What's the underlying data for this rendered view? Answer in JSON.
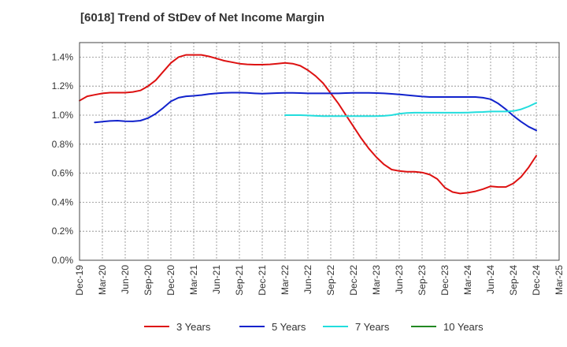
{
  "chart_data": {
    "type": "line",
    "title": "[6018]  Trend of StDev of Net Income Margin",
    "xlabel": "",
    "ylabel": "",
    "ylim": [
      0.0,
      1.5
    ],
    "y_ticks": [
      "0.0%",
      "0.2%",
      "0.4%",
      "0.6%",
      "0.8%",
      "1.0%",
      "1.2%",
      "1.4%"
    ],
    "y_tick_values": [
      0.0,
      0.2,
      0.4,
      0.6,
      0.8,
      1.0,
      1.2,
      1.4
    ],
    "x_ticks": [
      "Dec-19",
      "Mar-20",
      "Jun-20",
      "Sep-20",
      "Dec-20",
      "Mar-21",
      "Jun-21",
      "Sep-21",
      "Dec-21",
      "Mar-22",
      "Jun-22",
      "Sep-22",
      "Dec-22",
      "Mar-23",
      "Jun-23",
      "Sep-23",
      "Dec-23",
      "Mar-24",
      "Jun-24",
      "Sep-24",
      "Dec-24",
      "Mar-25"
    ],
    "grid": true,
    "legend_position": "bottom",
    "series": [
      {
        "name": "3 Years",
        "color": "#dd1111",
        "points": [
          [
            "Dec-19",
            1.1
          ],
          [
            "Jan-20",
            1.13
          ],
          [
            "Feb-20",
            1.14
          ],
          [
            "Mar-20",
            1.15
          ],
          [
            "Apr-20",
            1.155
          ],
          [
            "May-20",
            1.155
          ],
          [
            "Jun-20",
            1.155
          ],
          [
            "Jul-20",
            1.16
          ],
          [
            "Aug-20",
            1.17
          ],
          [
            "Sep-20",
            1.2
          ],
          [
            "Oct-20",
            1.24
          ],
          [
            "Nov-20",
            1.3
          ],
          [
            "Dec-20",
            1.36
          ],
          [
            "Jan-21",
            1.4
          ],
          [
            "Feb-21",
            1.415
          ],
          [
            "Mar-21",
            1.415
          ],
          [
            "Apr-21",
            1.415
          ],
          [
            "May-21",
            1.405
          ],
          [
            "Jun-21",
            1.39
          ],
          [
            "Jul-21",
            1.375
          ],
          [
            "Aug-21",
            1.365
          ],
          [
            "Sep-21",
            1.355
          ],
          [
            "Oct-21",
            1.35
          ],
          [
            "Nov-21",
            1.348
          ],
          [
            "Dec-21",
            1.348
          ],
          [
            "Jan-22",
            1.35
          ],
          [
            "Feb-22",
            1.355
          ],
          [
            "Mar-22",
            1.36
          ],
          [
            "Apr-22",
            1.355
          ],
          [
            "May-22",
            1.34
          ],
          [
            "Jun-22",
            1.31
          ],
          [
            "Jul-22",
            1.27
          ],
          [
            "Aug-22",
            1.22
          ],
          [
            "Sep-22",
            1.15
          ],
          [
            "Oct-22",
            1.08
          ],
          [
            "Nov-22",
            1.0
          ],
          [
            "Dec-22",
            0.92
          ],
          [
            "Jan-23",
            0.84
          ],
          [
            "Feb-23",
            0.77
          ],
          [
            "Mar-23",
            0.71
          ],
          [
            "Apr-23",
            0.66
          ],
          [
            "May-23",
            0.625
          ],
          [
            "Jun-23",
            0.615
          ],
          [
            "Jul-23",
            0.61
          ],
          [
            "Aug-23",
            0.61
          ],
          [
            "Sep-23",
            0.605
          ],
          [
            "Oct-23",
            0.59
          ],
          [
            "Nov-23",
            0.56
          ],
          [
            "Dec-23",
            0.5
          ],
          [
            "Jan-24",
            0.47
          ],
          [
            "Feb-24",
            0.46
          ],
          [
            "Mar-24",
            0.465
          ],
          [
            "Apr-24",
            0.475
          ],
          [
            "May-24",
            0.49
          ],
          [
            "Jun-24",
            0.51
          ],
          [
            "Jul-24",
            0.505
          ],
          [
            "Aug-24",
            0.505
          ],
          [
            "Sep-24",
            0.53
          ],
          [
            "Oct-24",
            0.575
          ],
          [
            "Nov-24",
            0.64
          ],
          [
            "Dec-24",
            0.72
          ]
        ]
      },
      {
        "name": "5 Years",
        "color": "#1122cc",
        "points": [
          [
            "Feb-20",
            0.95
          ],
          [
            "Mar-20",
            0.955
          ],
          [
            "Apr-20",
            0.96
          ],
          [
            "May-20",
            0.962
          ],
          [
            "Jun-20",
            0.958
          ],
          [
            "Jul-20",
            0.957
          ],
          [
            "Aug-20",
            0.962
          ],
          [
            "Sep-20",
            0.98
          ],
          [
            "Oct-20",
            1.01
          ],
          [
            "Nov-20",
            1.05
          ],
          [
            "Dec-20",
            1.095
          ],
          [
            "Jan-21",
            1.12
          ],
          [
            "Feb-21",
            1.13
          ],
          [
            "Mar-21",
            1.133
          ],
          [
            "Apr-21",
            1.138
          ],
          [
            "May-21",
            1.145
          ],
          [
            "Jun-21",
            1.15
          ],
          [
            "Jul-21",
            1.153
          ],
          [
            "Aug-21",
            1.155
          ],
          [
            "Sep-21",
            1.155
          ],
          [
            "Oct-21",
            1.153
          ],
          [
            "Nov-21",
            1.15
          ],
          [
            "Dec-21",
            1.148
          ],
          [
            "Jan-22",
            1.15
          ],
          [
            "Feb-22",
            1.152
          ],
          [
            "Mar-22",
            1.153
          ],
          [
            "Apr-22",
            1.153
          ],
          [
            "May-22",
            1.152
          ],
          [
            "Jun-22",
            1.15
          ],
          [
            "Jul-22",
            1.15
          ],
          [
            "Aug-22",
            1.15
          ],
          [
            "Sep-22",
            1.15
          ],
          [
            "Oct-22",
            1.15
          ],
          [
            "Nov-22",
            1.152
          ],
          [
            "Dec-22",
            1.153
          ],
          [
            "Jan-23",
            1.153
          ],
          [
            "Feb-23",
            1.153
          ],
          [
            "Mar-23",
            1.152
          ],
          [
            "Apr-23",
            1.15
          ],
          [
            "May-23",
            1.147
          ],
          [
            "Jun-23",
            1.143
          ],
          [
            "Jul-23",
            1.138
          ],
          [
            "Aug-23",
            1.133
          ],
          [
            "Sep-23",
            1.128
          ],
          [
            "Oct-23",
            1.125
          ],
          [
            "Nov-23",
            1.125
          ],
          [
            "Dec-23",
            1.125
          ],
          [
            "Jan-24",
            1.125
          ],
          [
            "Feb-24",
            1.125
          ],
          [
            "Mar-24",
            1.125
          ],
          [
            "Apr-24",
            1.125
          ],
          [
            "May-24",
            1.12
          ],
          [
            "Jun-24",
            1.11
          ],
          [
            "Jul-24",
            1.08
          ],
          [
            "Aug-24",
            1.04
          ],
          [
            "Sep-24",
            0.995
          ],
          [
            "Oct-24",
            0.955
          ],
          [
            "Nov-24",
            0.92
          ],
          [
            "Dec-24",
            0.895
          ]
        ]
      },
      {
        "name": "7 Years",
        "color": "#22dddd",
        "points": [
          [
            "Mar-22",
            1.0
          ],
          [
            "Apr-22",
            1.0
          ],
          [
            "May-22",
            1.0
          ],
          [
            "Jun-22",
            0.998
          ],
          [
            "Jul-22",
            0.995
          ],
          [
            "Aug-22",
            0.993
          ],
          [
            "Sep-22",
            0.993
          ],
          [
            "Oct-22",
            0.993
          ],
          [
            "Nov-22",
            0.993
          ],
          [
            "Dec-22",
            0.993
          ],
          [
            "Jan-23",
            0.993
          ],
          [
            "Feb-23",
            0.993
          ],
          [
            "Mar-23",
            0.993
          ],
          [
            "Apr-23",
            0.995
          ],
          [
            "May-23",
            1.0
          ],
          [
            "Jun-23",
            1.01
          ],
          [
            "Jul-23",
            1.015
          ],
          [
            "Aug-23",
            1.017
          ],
          [
            "Sep-23",
            1.017
          ],
          [
            "Oct-23",
            1.017
          ],
          [
            "Nov-23",
            1.017
          ],
          [
            "Dec-23",
            1.017
          ],
          [
            "Jan-24",
            1.017
          ],
          [
            "Feb-24",
            1.017
          ],
          [
            "Mar-24",
            1.018
          ],
          [
            "Apr-24",
            1.02
          ],
          [
            "May-24",
            1.022
          ],
          [
            "Jun-24",
            1.025
          ],
          [
            "Jul-24",
            1.025
          ],
          [
            "Aug-24",
            1.025
          ],
          [
            "Sep-24",
            1.028
          ],
          [
            "Oct-24",
            1.04
          ],
          [
            "Nov-24",
            1.06
          ],
          [
            "Dec-24",
            1.085
          ]
        ]
      },
      {
        "name": "10 Years",
        "color": "#228822",
        "points": []
      }
    ]
  }
}
